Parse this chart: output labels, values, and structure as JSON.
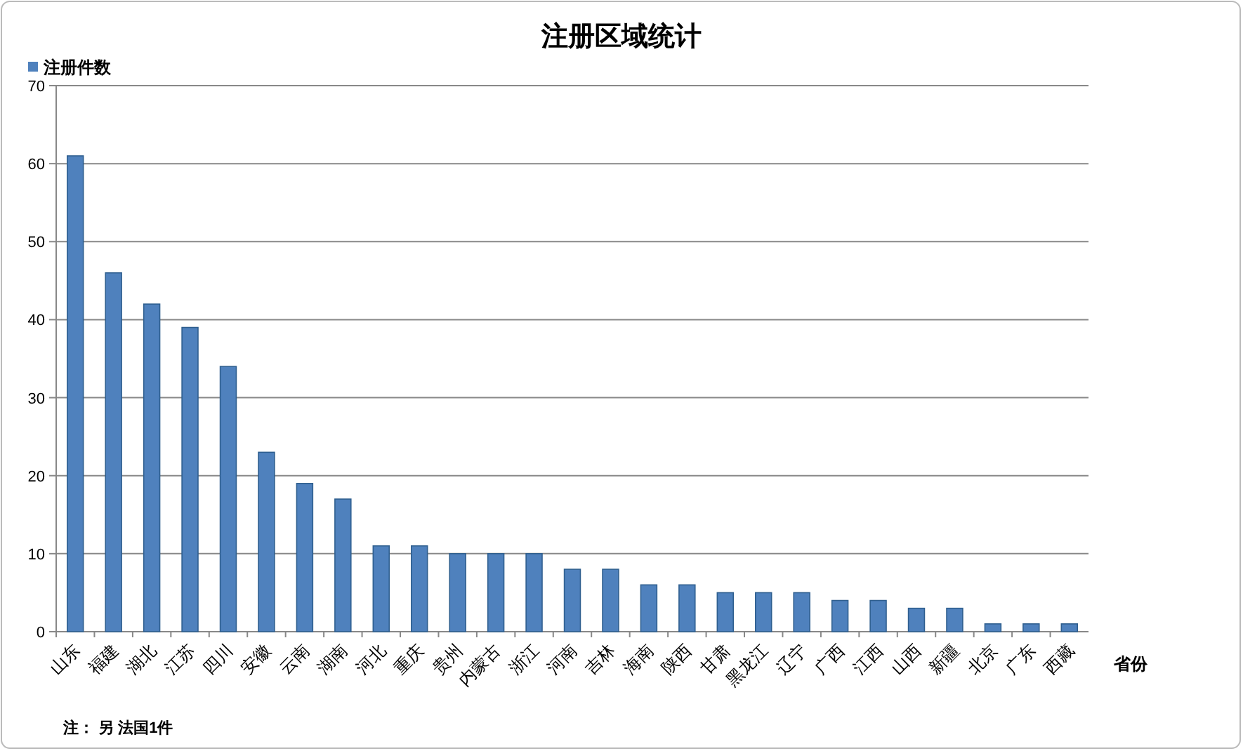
{
  "chart_data": {
    "type": "bar",
    "title": "注册区域统计",
    "xlabel": "省份",
    "annotations": [
      "注： 另 法国1件"
    ],
    "categories": [
      "山东",
      "福建",
      "湖北",
      "江苏",
      "四川",
      "安徽",
      "云南",
      "湖南",
      "河北",
      "重庆",
      "贵州",
      "内蒙古",
      "浙江",
      "河南",
      "吉林",
      "海南",
      "陕西",
      "甘肃",
      "黑龙江",
      "辽宁",
      "广西",
      "江西",
      "山西",
      "新疆",
      "北京",
      "广东",
      "西藏"
    ],
    "series": [
      {
        "name": "注册件数",
        "color": "#4f81bd",
        "values": [
          61,
          46,
          42,
          39,
          34,
          23,
          19,
          17,
          11,
          11,
          10,
          10,
          10,
          8,
          8,
          6,
          6,
          5,
          5,
          5,
          4,
          4,
          3,
          3,
          1,
          1,
          1
        ]
      }
    ],
    "ylim": [
      0,
      70
    ],
    "yticks": [
      0,
      10,
      20,
      30,
      40,
      50,
      60,
      70
    ],
    "grid": "y",
    "legend": "top left"
  }
}
